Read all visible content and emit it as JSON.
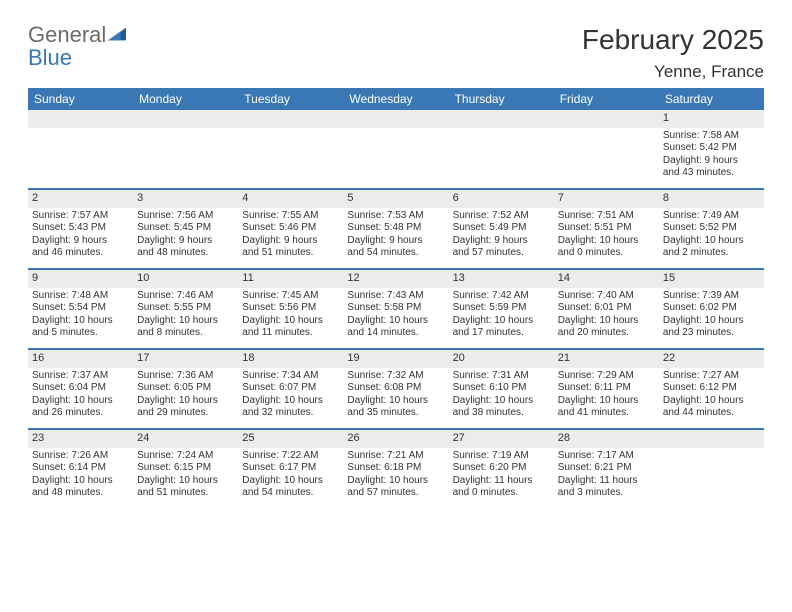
{
  "brand": {
    "line1": "General",
    "line2": "Blue"
  },
  "title": "February 2025",
  "location": "Yenne, France",
  "colors": {
    "header_bg": "#3a78b5",
    "header_text": "#ffffff",
    "datebar_bg": "#ececec",
    "text": "#333333",
    "logo_gray": "#6b6b6b",
    "logo_blue": "#3a78b5",
    "row_divider": "#3a78b5",
    "page_bg": "#ffffff"
  },
  "day_labels": [
    "Sunday",
    "Monday",
    "Tuesday",
    "Wednesday",
    "Thursday",
    "Friday",
    "Saturday"
  ],
  "weeks": [
    [
      {
        "date": "",
        "lines": [
          "",
          "",
          "",
          ""
        ]
      },
      {
        "date": "",
        "lines": [
          "",
          "",
          "",
          ""
        ]
      },
      {
        "date": "",
        "lines": [
          "",
          "",
          "",
          ""
        ]
      },
      {
        "date": "",
        "lines": [
          "",
          "",
          "",
          ""
        ]
      },
      {
        "date": "",
        "lines": [
          "",
          "",
          "",
          ""
        ]
      },
      {
        "date": "",
        "lines": [
          "",
          "",
          "",
          ""
        ]
      },
      {
        "date": "1",
        "lines": [
          "Sunrise: 7:58 AM",
          "Sunset: 5:42 PM",
          "Daylight: 9 hours",
          "and 43 minutes."
        ]
      }
    ],
    [
      {
        "date": "2",
        "lines": [
          "Sunrise: 7:57 AM",
          "Sunset: 5:43 PM",
          "Daylight: 9 hours",
          "and 46 minutes."
        ]
      },
      {
        "date": "3",
        "lines": [
          "Sunrise: 7:56 AM",
          "Sunset: 5:45 PM",
          "Daylight: 9 hours",
          "and 48 minutes."
        ]
      },
      {
        "date": "4",
        "lines": [
          "Sunrise: 7:55 AM",
          "Sunset: 5:46 PM",
          "Daylight: 9 hours",
          "and 51 minutes."
        ]
      },
      {
        "date": "5",
        "lines": [
          "Sunrise: 7:53 AM",
          "Sunset: 5:48 PM",
          "Daylight: 9 hours",
          "and 54 minutes."
        ]
      },
      {
        "date": "6",
        "lines": [
          "Sunrise: 7:52 AM",
          "Sunset: 5:49 PM",
          "Daylight: 9 hours",
          "and 57 minutes."
        ]
      },
      {
        "date": "7",
        "lines": [
          "Sunrise: 7:51 AM",
          "Sunset: 5:51 PM",
          "Daylight: 10 hours",
          "and 0 minutes."
        ]
      },
      {
        "date": "8",
        "lines": [
          "Sunrise: 7:49 AM",
          "Sunset: 5:52 PM",
          "Daylight: 10 hours",
          "and 2 minutes."
        ]
      }
    ],
    [
      {
        "date": "9",
        "lines": [
          "Sunrise: 7:48 AM",
          "Sunset: 5:54 PM",
          "Daylight: 10 hours",
          "and 5 minutes."
        ]
      },
      {
        "date": "10",
        "lines": [
          "Sunrise: 7:46 AM",
          "Sunset: 5:55 PM",
          "Daylight: 10 hours",
          "and 8 minutes."
        ]
      },
      {
        "date": "11",
        "lines": [
          "Sunrise: 7:45 AM",
          "Sunset: 5:56 PM",
          "Daylight: 10 hours",
          "and 11 minutes."
        ]
      },
      {
        "date": "12",
        "lines": [
          "Sunrise: 7:43 AM",
          "Sunset: 5:58 PM",
          "Daylight: 10 hours",
          "and 14 minutes."
        ]
      },
      {
        "date": "13",
        "lines": [
          "Sunrise: 7:42 AM",
          "Sunset: 5:59 PM",
          "Daylight: 10 hours",
          "and 17 minutes."
        ]
      },
      {
        "date": "14",
        "lines": [
          "Sunrise: 7:40 AM",
          "Sunset: 6:01 PM",
          "Daylight: 10 hours",
          "and 20 minutes."
        ]
      },
      {
        "date": "15",
        "lines": [
          "Sunrise: 7:39 AM",
          "Sunset: 6:02 PM",
          "Daylight: 10 hours",
          "and 23 minutes."
        ]
      }
    ],
    [
      {
        "date": "16",
        "lines": [
          "Sunrise: 7:37 AM",
          "Sunset: 6:04 PM",
          "Daylight: 10 hours",
          "and 26 minutes."
        ]
      },
      {
        "date": "17",
        "lines": [
          "Sunrise: 7:36 AM",
          "Sunset: 6:05 PM",
          "Daylight: 10 hours",
          "and 29 minutes."
        ]
      },
      {
        "date": "18",
        "lines": [
          "Sunrise: 7:34 AM",
          "Sunset: 6:07 PM",
          "Daylight: 10 hours",
          "and 32 minutes."
        ]
      },
      {
        "date": "19",
        "lines": [
          "Sunrise: 7:32 AM",
          "Sunset: 6:08 PM",
          "Daylight: 10 hours",
          "and 35 minutes."
        ]
      },
      {
        "date": "20",
        "lines": [
          "Sunrise: 7:31 AM",
          "Sunset: 6:10 PM",
          "Daylight: 10 hours",
          "and 38 minutes."
        ]
      },
      {
        "date": "21",
        "lines": [
          "Sunrise: 7:29 AM",
          "Sunset: 6:11 PM",
          "Daylight: 10 hours",
          "and 41 minutes."
        ]
      },
      {
        "date": "22",
        "lines": [
          "Sunrise: 7:27 AM",
          "Sunset: 6:12 PM",
          "Daylight: 10 hours",
          "and 44 minutes."
        ]
      }
    ],
    [
      {
        "date": "23",
        "lines": [
          "Sunrise: 7:26 AM",
          "Sunset: 6:14 PM",
          "Daylight: 10 hours",
          "and 48 minutes."
        ]
      },
      {
        "date": "24",
        "lines": [
          "Sunrise: 7:24 AM",
          "Sunset: 6:15 PM",
          "Daylight: 10 hours",
          "and 51 minutes."
        ]
      },
      {
        "date": "25",
        "lines": [
          "Sunrise: 7:22 AM",
          "Sunset: 6:17 PM",
          "Daylight: 10 hours",
          "and 54 minutes."
        ]
      },
      {
        "date": "26",
        "lines": [
          "Sunrise: 7:21 AM",
          "Sunset: 6:18 PM",
          "Daylight: 10 hours",
          "and 57 minutes."
        ]
      },
      {
        "date": "27",
        "lines": [
          "Sunrise: 7:19 AM",
          "Sunset: 6:20 PM",
          "Daylight: 11 hours",
          "and 0 minutes."
        ]
      },
      {
        "date": "28",
        "lines": [
          "Sunrise: 7:17 AM",
          "Sunset: 6:21 PM",
          "Daylight: 11 hours",
          "and 3 minutes."
        ]
      },
      {
        "date": "",
        "lines": [
          "",
          "",
          "",
          ""
        ]
      }
    ]
  ]
}
